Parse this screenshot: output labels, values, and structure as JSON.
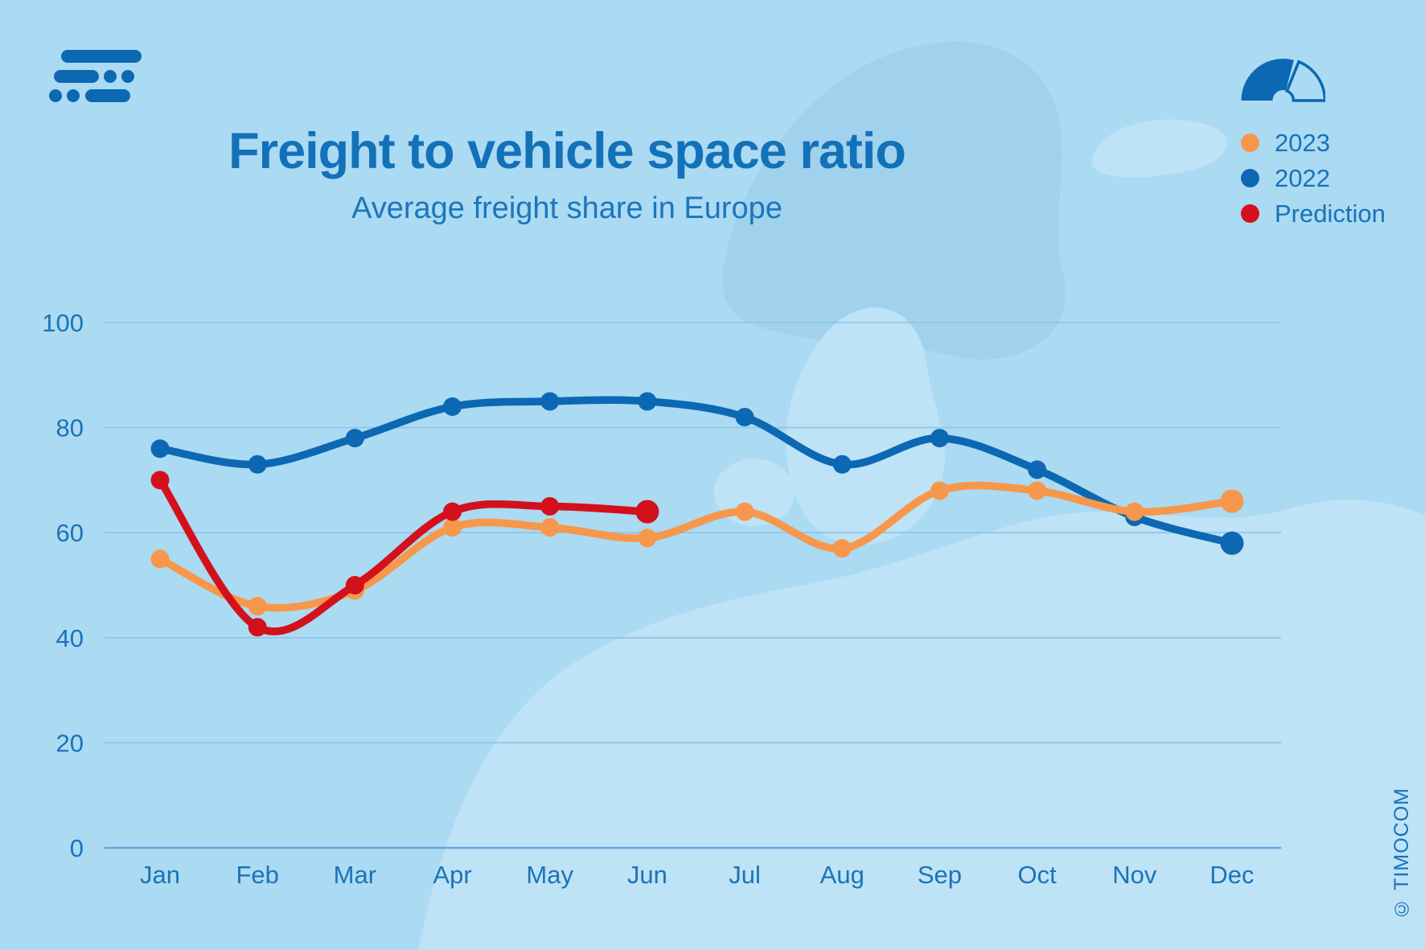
{
  "page": {
    "background_color": "#ABDAF3",
    "map_light_color": "#BEE2F6",
    "map_dark_color": "#A0D2ED"
  },
  "header": {
    "title": "Freight to vehicle space ratio",
    "subtitle": "Average freight share in Europe"
  },
  "branding": {
    "logo_icon": "timocom-logo-mark",
    "gauge_icon": "speedometer-gauge",
    "brand_color": "#0C68B2",
    "copyright": "© TIMOCOM"
  },
  "legend": {
    "position": "top-right",
    "items": [
      {
        "label": "2023",
        "color": "#F7974B"
      },
      {
        "label": "2022",
        "color": "#0C68B2"
      },
      {
        "label": "Prediction",
        "color": "#D3111C"
      }
    ]
  },
  "chart_data": {
    "type": "line",
    "title": "Freight to vehicle space ratio",
    "subtitle": "Average freight share in Europe",
    "categories": [
      "Jan",
      "Feb",
      "Mar",
      "Apr",
      "May",
      "Jun",
      "Jul",
      "Aug",
      "Sep",
      "Oct",
      "Nov",
      "Dec"
    ],
    "ylim": [
      0,
      100
    ],
    "yticks": [
      0,
      20,
      40,
      60,
      80,
      100
    ],
    "grid": "horizontal",
    "legend_position": "top-right",
    "axis_color": "#5FA5D6",
    "grid_color": "#8CC3E4",
    "series": [
      {
        "name": "2023",
        "color": "#F7974B",
        "z": 1,
        "values": [
          55,
          46,
          49,
          61,
          61,
          59,
          64,
          57,
          68,
          68,
          64,
          66
        ]
      },
      {
        "name": "2022",
        "color": "#0C68B2",
        "z": 0,
        "values": [
          76,
          73,
          78,
          84,
          85,
          85,
          82,
          73,
          78,
          72,
          63,
          58
        ]
      },
      {
        "name": "Prediction",
        "color": "#D3111C",
        "z": 2,
        "values": [
          70,
          42,
          50,
          64,
          65,
          64,
          null,
          null,
          null,
          null,
          null,
          null
        ]
      }
    ]
  }
}
